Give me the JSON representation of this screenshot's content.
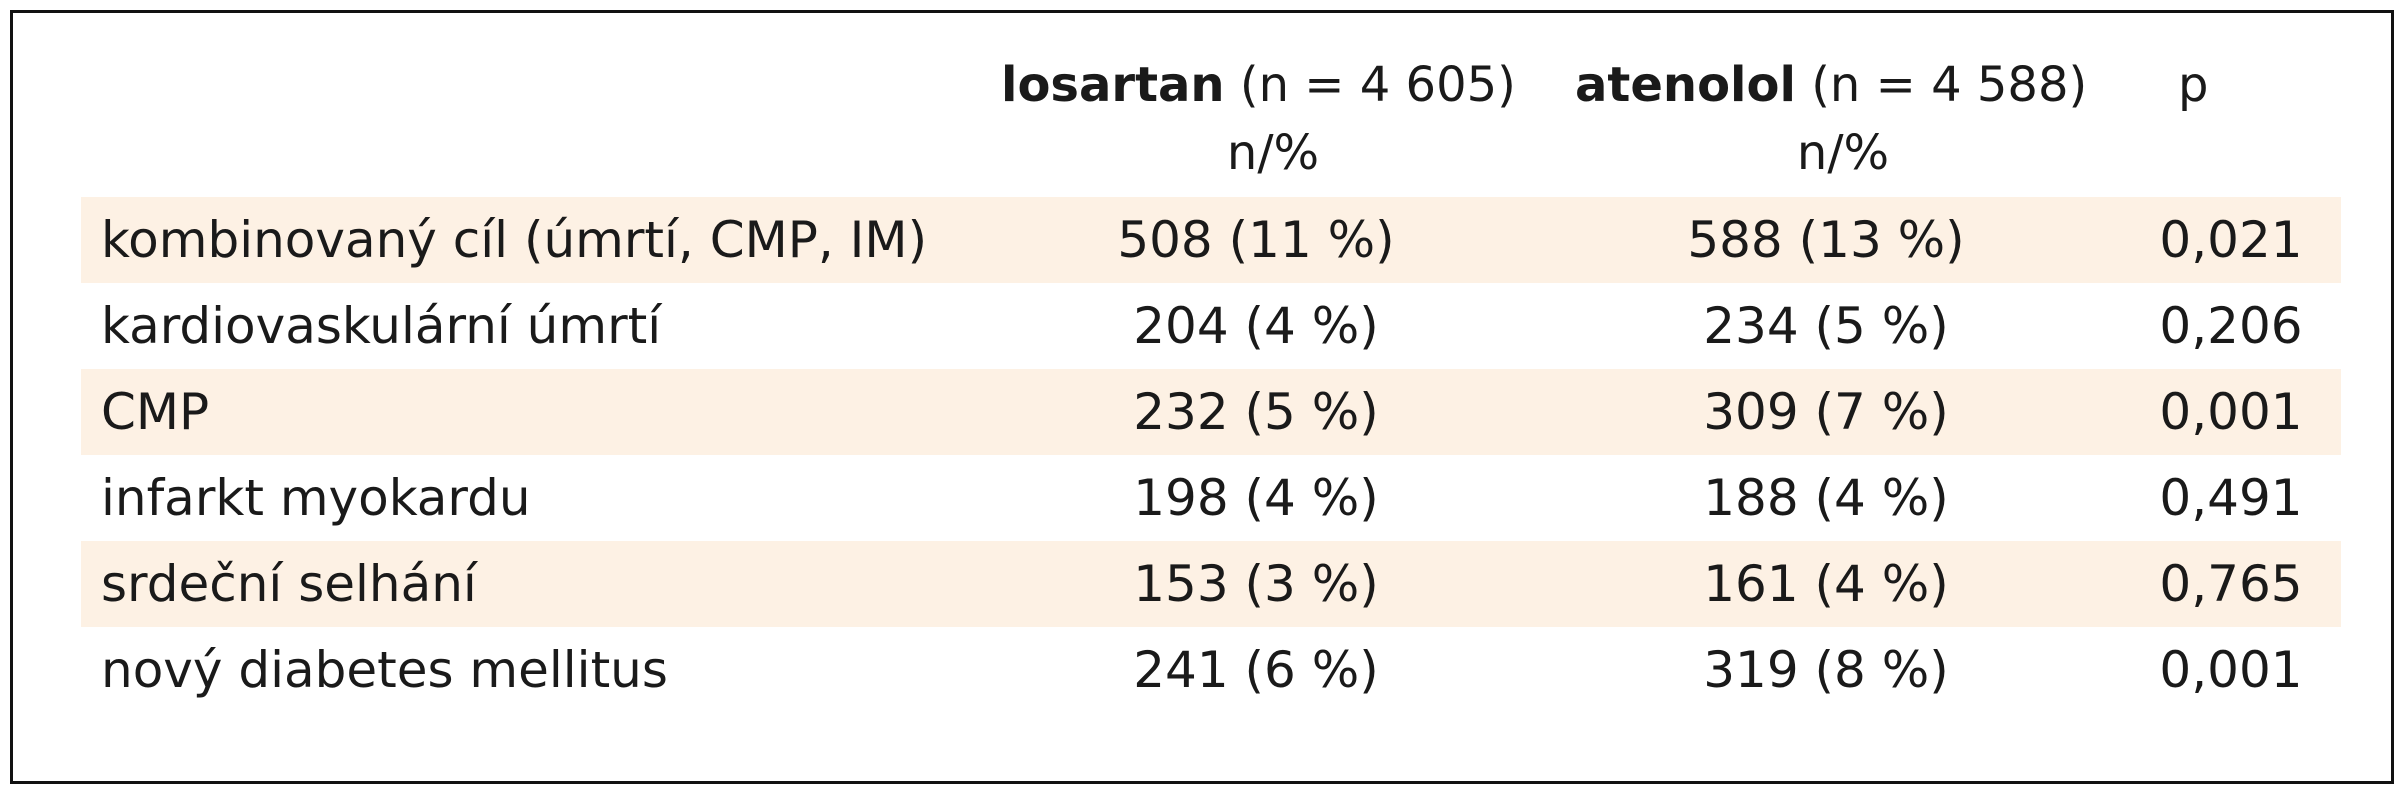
{
  "table": {
    "headers": {
      "losartan_name": "losartan",
      "losartan_n": "(n = 4 605)",
      "losartan_unit": "n/%",
      "atenolol_name": "atenolol",
      "atenolol_n": "(n = 4 588)",
      "atenolol_unit": "n/%",
      "p": "p"
    },
    "rows": [
      {
        "label": "kombinovaný cíl (úmrtí, CMP, IM)",
        "losartan": "508 (11 %)",
        "atenolol": "588 (13 %)",
        "p": "0,021",
        "shaded": true
      },
      {
        "label": "kardiovaskulární úmrtí",
        "losartan": "204 (4 %)",
        "atenolol": "234 (5 %)",
        "p": "0,206",
        "shaded": false
      },
      {
        "label": "CMP",
        "losartan": "232 (5 %)",
        "atenolol": "309 (7 %)",
        "p": "0,001",
        "shaded": true
      },
      {
        "label": "infarkt myokardu",
        "losartan": "198 (4 %)",
        "atenolol": "188 (4 %)",
        "p": "0,491",
        "shaded": false
      },
      {
        "label": "srdeční selhání",
        "losartan": "153 (3 %)",
        "atenolol": "161 (4 %)",
        "p": "0,765",
        "shaded": true
      },
      {
        "label": "nový diabetes mellitus",
        "losartan": "241 (6 %)",
        "atenolol": "319 (8 %)",
        "p": "0,001",
        "shaded": false
      }
    ],
    "shade_color": "#fdf1e4",
    "border_color": "#111111"
  }
}
